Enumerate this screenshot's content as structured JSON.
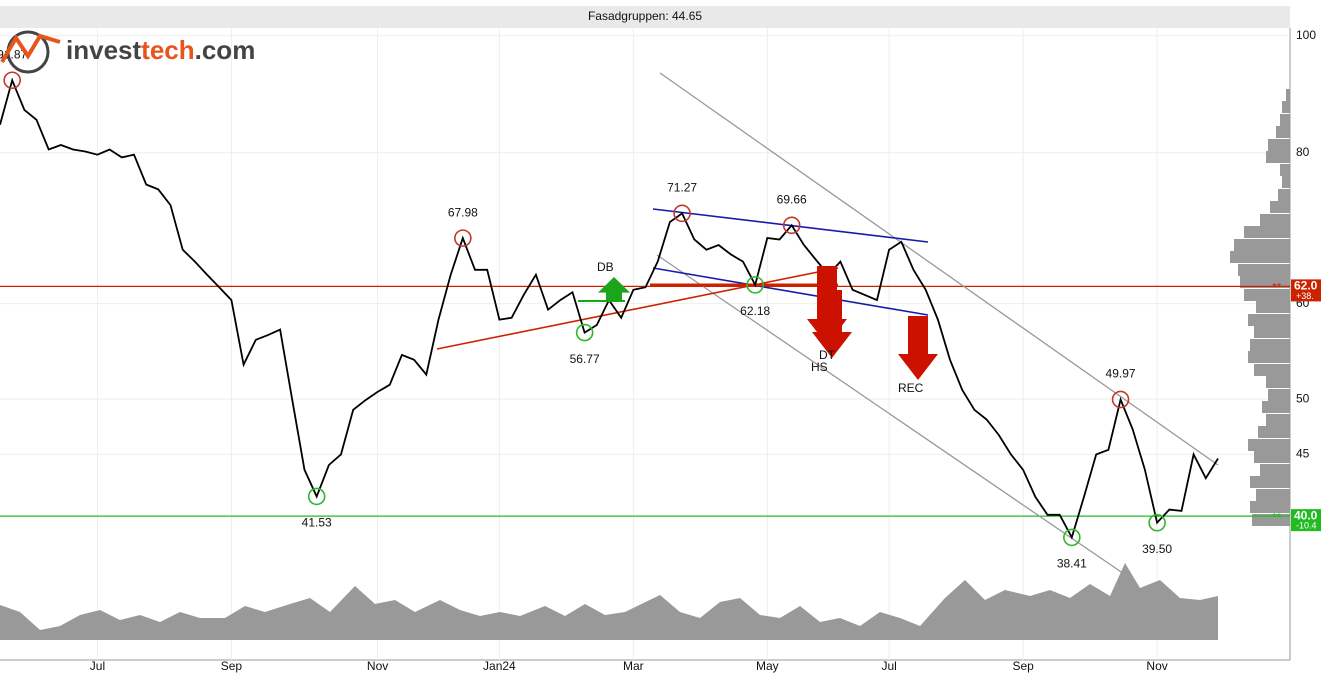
{
  "chart_data": {
    "type": "line",
    "title": "Fasadgruppen: 44.65",
    "logo": {
      "part1": "invest",
      "part2": "tech",
      "part3": ".com"
    },
    "log_y": true,
    "grid": true,
    "color": "#000000",
    "ylim": [
      30.4,
      101.5
    ],
    "yticks": [
      100,
      80,
      60,
      50,
      45
    ],
    "categories": [
      null,
      null,
      null,
      null,
      null,
      null,
      null,
      null,
      "Jul",
      null,
      null,
      null,
      null,
      null,
      null,
      null,
      null,
      null,
      null,
      "Sep",
      null,
      null,
      null,
      null,
      null,
      null,
      null,
      null,
      null,
      null,
      null,
      "Nov",
      null,
      null,
      null,
      null,
      null,
      null,
      null,
      null,
      null,
      "Jan24",
      null,
      null,
      null,
      null,
      null,
      null,
      null,
      null,
      null,
      null,
      "Mar",
      null,
      null,
      null,
      null,
      null,
      null,
      null,
      null,
      null,
      null,
      "May",
      null,
      null,
      null,
      null,
      null,
      null,
      null,
      null,
      null,
      "Jul",
      null,
      null,
      null,
      null,
      null,
      null,
      null,
      null,
      null,
      null,
      "Sep",
      null,
      null,
      null,
      null,
      null,
      null,
      null,
      null,
      null,
      null,
      "Nov",
      null,
      null,
      null,
      null,
      null
    ],
    "values": [
      84.4,
      91.87,
      86.8,
      85.2,
      80.5,
      81.2,
      80.5,
      80.2,
      79.7,
      80.5,
      79.3,
      79.7,
      75.3,
      74.6,
      72.4,
      66.5,
      65.0,
      63.4,
      61.9,
      60.4,
      53.4,
      56.0,
      56.5,
      57.1,
      49.9,
      43.7,
      41.53,
      44.1,
      45.0,
      49.0,
      49.9,
      50.7,
      51.4,
      54.4,
      53.9,
      52.4,
      58.2,
      63.4,
      67.98,
      64.0,
      64.0,
      58.2,
      58.4,
      61.0,
      63.4,
      59.3,
      60.4,
      61.3,
      56.77,
      57.6,
      60.4,
      58.4,
      61.6,
      61.9,
      65.0,
      70.1,
      71.27,
      67.8,
      66.5,
      67.1,
      65.9,
      65.0,
      62.18,
      68.0,
      67.8,
      69.66,
      67.1,
      65.2,
      63.4,
      65.0,
      61.6,
      61.0,
      60.4,
      66.5,
      67.5,
      64.0,
      61.6,
      58.2,
      53.9,
      50.9,
      49.0,
      48.1,
      46.7,
      45.0,
      43.7,
      41.5,
      40.1,
      40.1,
      38.41,
      41.5,
      45.0,
      45.4,
      49.97,
      47.2,
      43.7,
      39.5,
      40.5,
      40.4,
      45.0,
      43.0,
      44.65
    ],
    "highs": [
      91.87,
      67.98,
      71.27,
      69.66,
      49.97
    ],
    "lows": [
      41.53,
      56.77,
      62.18,
      38.41,
      {
        "value": 39.5,
        "label": "39.50"
      }
    ],
    "levels": [
      {
        "value": 62,
        "label": "62.0",
        "note": "+38.",
        "marker": "**",
        "color": "#cc2200"
      },
      {
        "value": 40,
        "label": "40.0",
        "note": "-10.4",
        "marker": "**",
        "color": "#22bb22"
      }
    ],
    "signals": [
      {
        "label": "DB",
        "direction": "up",
        "color": "#1aa51a"
      },
      {
        "label": "HS",
        "direction": "down",
        "color": "#cc1100"
      },
      {
        "label": "DT",
        "direction": "down",
        "color": "#cc1100"
      },
      {
        "label": "REC",
        "direction": "down",
        "color": "#cc1100"
      }
    ]
  }
}
